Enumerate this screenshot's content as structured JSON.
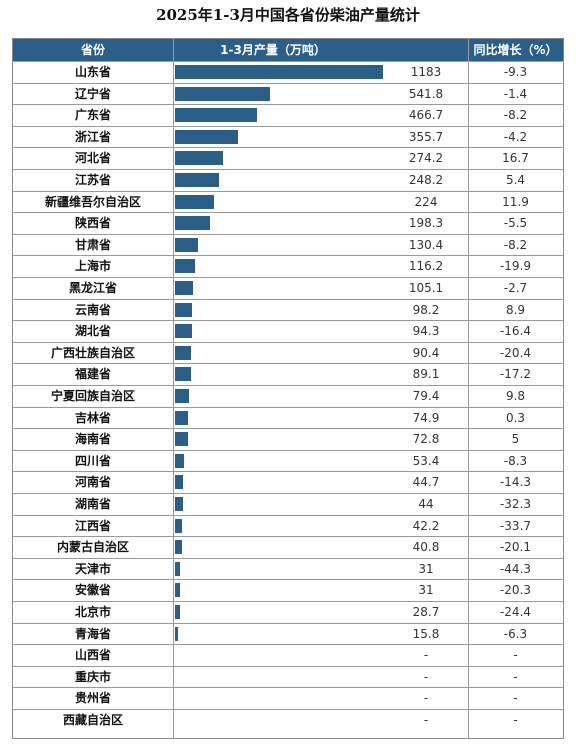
{
  "title": "2025年1-3月中国各省份柴油产量统计",
  "header": {
    "province": "省份",
    "output": "1-3月产量（万吨）",
    "growth": "同比增长（%）"
  },
  "colors": {
    "bar": "#2a5f8a",
    "header_bg": "#2a5f8a"
  },
  "chart_data": {
    "type": "bar",
    "orientation": "horizontal",
    "title": "2025年1-3月中国各省份柴油产量统计",
    "categories": [
      "山东省",
      "辽宁省",
      "广东省",
      "浙江省",
      "河北省",
      "江苏省",
      "新疆维吾尔自治区",
      "陕西省",
      "甘肃省",
      "上海市",
      "黑龙江省",
      "云南省",
      "湖北省",
      "广西壮族自治区",
      "福建省",
      "宁夏回族自治区",
      "吉林省",
      "海南省",
      "四川省",
      "河南省",
      "湖南省",
      "江西省",
      "内蒙古自治区",
      "天津市",
      "安徽省",
      "北京市",
      "青海省",
      "山西省",
      "重庆市",
      "贵州省",
      "西藏自治区"
    ],
    "series": [
      {
        "name": "1-3月产量（万吨）",
        "values": [
          1183,
          541.8,
          466.7,
          355.7,
          274.2,
          248.2,
          224,
          198.3,
          130.4,
          116.2,
          105.1,
          98.2,
          94.3,
          90.4,
          89.1,
          79.4,
          74.9,
          72.8,
          53.4,
          44.7,
          44,
          42.2,
          40.8,
          31,
          31,
          28.7,
          15.8,
          null,
          null,
          null,
          null
        ]
      },
      {
        "name": "同比增长（%）",
        "values": [
          -9.3,
          -1.4,
          -8.2,
          -4.2,
          16.7,
          5.4,
          11.9,
          -5.5,
          -8.2,
          -19.9,
          -2.7,
          8.9,
          -16.4,
          -20.4,
          -17.2,
          9.8,
          0.3,
          5,
          -8.3,
          -14.3,
          -32.3,
          -33.7,
          -20.1,
          -44.3,
          -20.3,
          -24.4,
          -6.3,
          null,
          null,
          null,
          null
        ]
      }
    ],
    "value_labels": [
      "1183",
      "541.8",
      "466.7",
      "355.7",
      "274.2",
      "248.2",
      "224",
      "198.3",
      "130.4",
      "116.2",
      "105.1",
      "98.2",
      "94.3",
      "90.4",
      "89.1",
      "79.4",
      "74.9",
      "72.8",
      "53.4",
      "44.7",
      "44",
      "42.2",
      "40.8",
      "31",
      "31",
      "28.7",
      "15.8",
      "-",
      "-",
      "-",
      "-"
    ],
    "growth_labels": [
      "-9.3",
      "-1.4",
      "-8.2",
      "-4.2",
      "16.7",
      "5.4",
      "11.9",
      "-5.5",
      "-8.2",
      "-19.9",
      "-2.7",
      "8.9",
      "-16.4",
      "-20.4",
      "-17.2",
      "9.8",
      "0.3",
      "5",
      "-8.3",
      "-14.3",
      "-32.3",
      "-33.7",
      "-20.1",
      "-44.3",
      "-20.3",
      "-24.4",
      "-6.3",
      "-",
      "-",
      "-",
      "-"
    ]
  }
}
